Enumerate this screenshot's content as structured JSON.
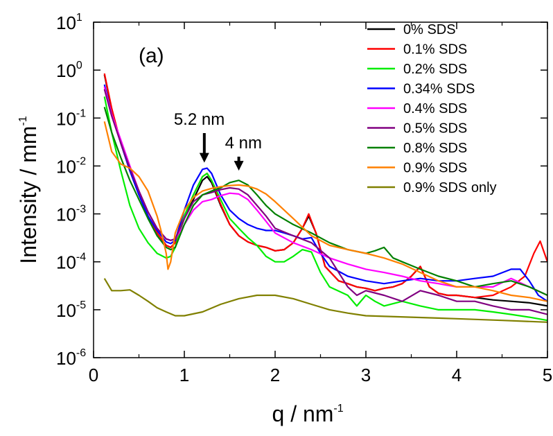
{
  "chart_data": {
    "type": "line",
    "panel_label": "(a)",
    "xlabel": {
      "base": "q / nm",
      "exp": "-1"
    },
    "ylabel": {
      "base": "Intensity / mm",
      "exp": "-1"
    },
    "xlim": [
      0,
      5
    ],
    "ylim": [
      1e-06,
      10
    ],
    "yscale": "log",
    "x_ticks": [
      {
        "value": 0,
        "label": "0"
      },
      {
        "value": 1,
        "label": "1"
      },
      {
        "value": 2,
        "label": "2"
      },
      {
        "value": 3,
        "label": "3"
      },
      {
        "value": 4,
        "label": "4"
      },
      {
        "value": 5,
        "label": "5"
      }
    ],
    "y_ticks": [
      {
        "value": 1e-06,
        "base": "10",
        "exp": "-6"
      },
      {
        "value": 1e-05,
        "base": "10",
        "exp": "-5"
      },
      {
        "value": 0.0001,
        "base": "10",
        "exp": "-4"
      },
      {
        "value": 0.001,
        "base": "10",
        "exp": "-3"
      },
      {
        "value": 0.01,
        "base": "10",
        "exp": "-2"
      },
      {
        "value": 0.1,
        "base": "10",
        "exp": "-1"
      },
      {
        "value": 1,
        "base": "10",
        "exp": "0"
      },
      {
        "value": 10,
        "base": "10",
        "exp": "1"
      }
    ],
    "annotations": [
      {
        "text": "5.2 nm",
        "x": 1.22,
        "y": 0.011
      },
      {
        "text": "4 nm",
        "x": 1.6,
        "y": 0.0075
      }
    ],
    "legend_position": "top-right",
    "series": [
      {
        "name": "0% SDS",
        "color": "#000000",
        "x": [
          0.12,
          0.2,
          0.3,
          0.4,
          0.5,
          0.6,
          0.7,
          0.8,
          0.85,
          0.9,
          1.0,
          1.1,
          1.2,
          1.25,
          1.3,
          1.4,
          1.5,
          1.6,
          1.7,
          1.8,
          1.9,
          2.0,
          2.1,
          2.2,
          2.3,
          2.37,
          2.45,
          2.55,
          2.7,
          2.8,
          2.9,
          3.0,
          3.1,
          3.2,
          3.3,
          3.4,
          3.5,
          3.6,
          3.7,
          3.8,
          3.9,
          4.0,
          4.2,
          4.4,
          4.6,
          4.8,
          4.9,
          5.0
        ],
        "y": [
          0.8,
          0.15,
          0.03,
          0.008,
          0.0025,
          0.0009,
          0.0004,
          0.00022,
          0.0002,
          0.00025,
          0.0008,
          0.002,
          0.005,
          0.006,
          0.0045,
          0.0015,
          0.0006,
          0.00035,
          0.00026,
          0.00022,
          0.0002,
          0.00017,
          0.00018,
          0.00025,
          0.0005,
          0.0009,
          0.0004,
          8e-05,
          4e-05,
          3.5e-05,
          3e-05,
          2.8e-05,
          2.5e-05,
          2.8e-05,
          3e-05,
          3.5e-05,
          5e-05,
          8e-05,
          3e-05,
          2.2e-05,
          2e-05,
          2e-05,
          1.8e-05,
          1.6e-05,
          1.5e-05,
          1.4e-05,
          1.3e-05,
          1.2e-05
        ]
      },
      {
        "name": "0.1% SDS",
        "color": "#ff0000",
        "x": [
          0.12,
          0.2,
          0.3,
          0.4,
          0.5,
          0.6,
          0.7,
          0.8,
          0.85,
          0.9,
          1.0,
          1.1,
          1.2,
          1.25,
          1.3,
          1.4,
          1.5,
          1.6,
          1.7,
          1.8,
          1.9,
          2.0,
          2.1,
          2.2,
          2.3,
          2.37,
          2.45,
          2.55,
          2.7,
          2.8,
          2.9,
          3.0,
          3.1,
          3.2,
          3.3,
          3.4,
          3.5,
          3.6,
          3.7,
          3.8,
          3.9,
          4.0,
          4.2,
          4.4,
          4.6,
          4.75,
          4.85,
          4.92,
          5.0
        ],
        "y": [
          0.85,
          0.16,
          0.03,
          0.008,
          0.0025,
          0.0009,
          0.0004,
          0.00022,
          0.0002,
          0.00025,
          0.0009,
          0.0025,
          0.006,
          0.007,
          0.005,
          0.0016,
          0.0006,
          0.00035,
          0.00026,
          0.00022,
          0.0002,
          0.00017,
          0.00018,
          0.00025,
          0.0005,
          0.001,
          0.0004,
          8e-05,
          4e-05,
          3.5e-05,
          3e-05,
          2.8e-05,
          2.5e-05,
          2.8e-05,
          3e-05,
          3.5e-05,
          5e-05,
          8e-05,
          3e-05,
          2.2e-05,
          2e-05,
          2e-05,
          1.8e-05,
          2e-05,
          3e-05,
          5e-05,
          0.00015,
          0.00027,
          0.0001
        ]
      },
      {
        "name": "0.2% SDS",
        "color": "#00ee00",
        "x": [
          0.12,
          0.2,
          0.3,
          0.4,
          0.5,
          0.6,
          0.7,
          0.8,
          0.85,
          0.9,
          1.0,
          1.1,
          1.2,
          1.25,
          1.3,
          1.4,
          1.5,
          1.6,
          1.7,
          1.8,
          1.9,
          2.0,
          2.1,
          2.2,
          2.3,
          2.4,
          2.5,
          2.6,
          2.8,
          2.9,
          3.0,
          3.1,
          3.2,
          3.4,
          3.6,
          3.8,
          4.0,
          4.2,
          4.4,
          4.6,
          4.8,
          5.0
        ],
        "y": [
          0.28,
          0.05,
          0.008,
          0.0015,
          0.0005,
          0.00025,
          0.00015,
          0.00012,
          0.00013,
          0.0002,
          0.0009,
          0.0025,
          0.006,
          0.007,
          0.005,
          0.002,
          0.0008,
          0.0005,
          0.00032,
          0.00022,
          0.00013,
          0.0001,
          0.0001,
          0.00013,
          0.00018,
          0.00016,
          6e-05,
          3e-05,
          2e-05,
          1.2e-05,
          2e-05,
          1.5e-05,
          1.2e-05,
          1.5e-05,
          1.2e-05,
          1e-05,
          1e-05,
          1e-05,
          9e-06,
          8e-06,
          7e-06,
          6e-06
        ]
      },
      {
        "name": "0.34% SDS",
        "color": "#0000ff",
        "x": [
          0.12,
          0.2,
          0.3,
          0.4,
          0.5,
          0.6,
          0.7,
          0.8,
          0.85,
          0.9,
          1.0,
          1.1,
          1.2,
          1.25,
          1.3,
          1.4,
          1.5,
          1.6,
          1.7,
          1.8,
          1.9,
          2.0,
          2.1,
          2.2,
          2.3,
          2.4,
          2.5,
          2.6,
          2.8,
          3.0,
          3.2,
          3.4,
          3.6,
          3.8,
          4.0,
          4.2,
          4.4,
          4.6,
          4.7,
          4.8,
          4.9,
          5.0
        ],
        "y": [
          0.5,
          0.12,
          0.03,
          0.008,
          0.0025,
          0.0009,
          0.00045,
          0.00026,
          0.00024,
          0.00028,
          0.0012,
          0.004,
          0.0085,
          0.009,
          0.007,
          0.0025,
          0.0012,
          0.0008,
          0.0006,
          0.0005,
          0.00045,
          0.00045,
          0.0004,
          0.00035,
          0.0003,
          0.00032,
          0.00015,
          8e-05,
          5e-05,
          4e-05,
          3.5e-05,
          4e-05,
          4.5e-05,
          4e-05,
          4e-05,
          4.5e-05,
          5e-05,
          7e-05,
          7e-05,
          4e-05,
          2e-05,
          1.5e-05
        ]
      },
      {
        "name": "0.4% SDS",
        "color": "#ff00ff",
        "x": [
          0.12,
          0.2,
          0.3,
          0.4,
          0.5,
          0.6,
          0.7,
          0.8,
          0.85,
          0.9,
          1.0,
          1.1,
          1.2,
          1.3,
          1.4,
          1.5,
          1.6,
          1.7,
          1.8,
          1.9,
          2.0,
          2.2,
          2.4,
          2.6,
          2.8,
          3.0,
          3.2,
          3.4,
          3.6,
          3.8,
          4.0,
          4.2,
          4.4,
          4.6,
          4.8,
          5.0
        ],
        "y": [
          0.45,
          0.12,
          0.035,
          0.01,
          0.003,
          0.0011,
          0.0005,
          0.0003,
          0.00028,
          0.0003,
          0.0006,
          0.0012,
          0.0018,
          0.002,
          0.0024,
          0.0027,
          0.0026,
          0.002,
          0.0012,
          0.0007,
          0.0004,
          0.00025,
          0.00018,
          0.00012,
          9e-05,
          7e-05,
          6e-05,
          5e-05,
          4e-05,
          3.5e-05,
          3e-05,
          3e-05,
          3e-05,
          4.5e-05,
          3e-05,
          2e-05
        ]
      },
      {
        "name": "0.5% SDS",
        "color": "#800080",
        "x": [
          0.12,
          0.2,
          0.3,
          0.4,
          0.5,
          0.6,
          0.7,
          0.8,
          0.85,
          0.9,
          1.0,
          1.1,
          1.2,
          1.3,
          1.4,
          1.5,
          1.6,
          1.7,
          1.8,
          1.9,
          2.0,
          2.2,
          2.4,
          2.6,
          2.8,
          2.9,
          3.0,
          3.2,
          3.4,
          3.6,
          3.8,
          4.0,
          4.2,
          4.4,
          4.6,
          4.8,
          5.0
        ],
        "y": [
          0.4,
          0.11,
          0.03,
          0.009,
          0.003,
          0.0011,
          0.0005,
          0.0003,
          0.00028,
          0.0003,
          0.0008,
          0.0018,
          0.0025,
          0.0028,
          0.0032,
          0.0035,
          0.0033,
          0.0025,
          0.0015,
          0.0009,
          0.0005,
          0.00035,
          0.00025,
          0.00012,
          3e-05,
          2e-05,
          2.5e-05,
          2e-05,
          1.5e-05,
          2.5e-05,
          2e-05,
          1.5e-05,
          1.5e-05,
          1.2e-05,
          1e-05,
          1e-05,
          8e-06
        ]
      },
      {
        "name": "0.8% SDS",
        "color": "#008000",
        "x": [
          0.12,
          0.2,
          0.3,
          0.4,
          0.5,
          0.6,
          0.7,
          0.8,
          0.85,
          0.9,
          1.0,
          1.1,
          1.2,
          1.3,
          1.4,
          1.5,
          1.6,
          1.7,
          1.8,
          1.9,
          2.0,
          2.2,
          2.4,
          2.6,
          2.8,
          3.0,
          3.1,
          3.2,
          3.3,
          3.4,
          3.6,
          3.8,
          4.0,
          4.2,
          4.4,
          4.6,
          4.8,
          5.0
        ],
        "y": [
          0.17,
          0.05,
          0.015,
          0.005,
          0.002,
          0.0008,
          0.00035,
          0.0002,
          0.00018,
          0.0002,
          0.0006,
          0.0015,
          0.0025,
          0.003,
          0.0035,
          0.0045,
          0.005,
          0.004,
          0.0025,
          0.0015,
          0.001,
          0.0006,
          0.0004,
          0.00025,
          0.00018,
          0.00015,
          0.00017,
          0.0002,
          0.00012,
          0.0001,
          7e-05,
          5e-05,
          4e-05,
          3e-05,
          3.5e-05,
          4e-05,
          3e-05,
          2e-05
        ]
      },
      {
        "name": "0.9% SDS",
        "color": "#ff8000",
        "x": [
          0.12,
          0.2,
          0.3,
          0.4,
          0.5,
          0.6,
          0.7,
          0.75,
          0.8,
          0.82,
          0.85,
          0.9,
          1.0,
          1.1,
          1.2,
          1.3,
          1.4,
          1.5,
          1.6,
          1.7,
          1.8,
          1.9,
          2.0,
          2.2,
          2.4,
          2.6,
          2.8,
          3.0,
          3.2,
          3.4,
          3.6,
          3.8,
          4.0,
          4.2,
          4.4,
          4.6,
          4.8,
          5.0
        ],
        "y": [
          0.085,
          0.02,
          0.011,
          0.009,
          0.006,
          0.003,
          0.0009,
          0.0004,
          0.00015,
          7e-05,
          0.0001,
          0.0004,
          0.0012,
          0.0022,
          0.003,
          0.0034,
          0.0037,
          0.0039,
          0.004,
          0.0038,
          0.0033,
          0.0026,
          0.0018,
          0.0008,
          0.00035,
          0.00022,
          0.00018,
          0.00015,
          0.00012,
          9e-05,
          6e-05,
          4e-05,
          3e-05,
          3e-05,
          2.5e-05,
          2e-05,
          1.8e-05,
          1.5e-05
        ]
      },
      {
        "name": "0.9% SDS only",
        "color": "#808000",
        "x": [
          0.12,
          0.2,
          0.3,
          0.4,
          0.5,
          0.6,
          0.7,
          0.8,
          0.9,
          1.0,
          1.2,
          1.4,
          1.6,
          1.8,
          2.0,
          2.2,
          2.4,
          2.6,
          2.8,
          3.0,
          3.5,
          4.0,
          4.5,
          5.0
        ],
        "y": [
          4.5e-05,
          2.5e-05,
          2.5e-05,
          2.6e-05,
          2e-05,
          1.5e-05,
          1.1e-05,
          9e-06,
          7.5e-06,
          7.5e-06,
          9e-06,
          1.3e-05,
          1.7e-05,
          2e-05,
          2e-05,
          1.7e-05,
          1.3e-05,
          1e-05,
          8.5e-06,
          7.5e-06,
          7e-06,
          6.5e-06,
          6e-06,
          5.5e-06
        ]
      }
    ]
  }
}
